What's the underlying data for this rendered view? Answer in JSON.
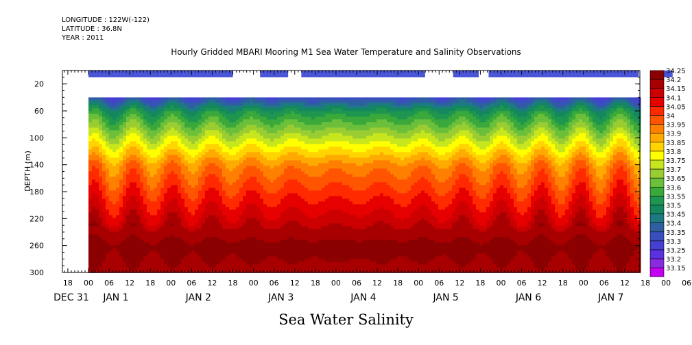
{
  "header": {
    "longitude": "LONGITUDE : 122W(-122)",
    "latitude": "LATITUDE : 36.8N",
    "year": "YEAR : 2011"
  },
  "chart_data": {
    "type": "heatmap",
    "title": "Hourly Gridded MBARI Mooring M1 Sea Water Temperature and Salinity Observations",
    "xlabel": "Sea Water Salinity",
    "ylabel": "DEPTH (m)",
    "ylim": [
      300,
      0
    ],
    "y_ticks": [
      20,
      60,
      100,
      140,
      180,
      220,
      260,
      300
    ],
    "x_hour_ticks": [
      "18",
      "00",
      "06",
      "12",
      "18",
      "00",
      "06",
      "12",
      "18",
      "00",
      "06",
      "12",
      "18",
      "00",
      "06",
      "12",
      "18",
      "00",
      "06",
      "12",
      "18",
      "00",
      "06",
      "12",
      "18",
      "00",
      "06",
      "12",
      "18",
      "00",
      "06",
      "12"
    ],
    "x_day_labels": [
      "DEC 31",
      "JAN 1",
      "JAN 2",
      "JAN 3",
      "JAN 4",
      "JAN 5",
      "JAN 6",
      "JAN 7"
    ],
    "colorbar": {
      "levels": [
        "34.25",
        "34.2",
        "34.15",
        "34.1",
        "34.05",
        "34",
        "33.95",
        "33.9",
        "33.85",
        "33.8",
        "33.75",
        "33.7",
        "33.65",
        "33.6",
        "33.55",
        "33.5",
        "33.45",
        "33.4",
        "33.35",
        "33.3",
        "33.25",
        "33.2",
        "33.15"
      ],
      "colors": [
        "#8b0000",
        "#a80000",
        "#cc0000",
        "#e60000",
        "#ff2a00",
        "#ff5500",
        "#ff8000",
        "#ffaa00",
        "#ffd400",
        "#ffff00",
        "#c8e61e",
        "#9acd32",
        "#6bbf3a",
        "#3aa83a",
        "#1e9650",
        "#14875f",
        "#1e7a82",
        "#2e5fa0",
        "#3a4fbe",
        "#4640d2",
        "#5a32e0",
        "#8a2be2",
        "#c400f0"
      ]
    },
    "surface_band_segments_day": [
      [
        0.0,
        1.75
      ],
      [
        2.08,
        2.42
      ],
      [
        2.58,
        4.08
      ],
      [
        4.42,
        4.73
      ],
      [
        4.85,
        6.67
      ],
      [
        6.88,
        7.08
      ]
    ],
    "depth_structure": [
      {
        "depth": 40,
        "salinity": 33.35
      },
      {
        "depth": 60,
        "salinity": 33.55
      },
      {
        "depth": 80,
        "salinity": 33.65
      },
      {
        "depth": 100,
        "salinity": 33.75
      },
      {
        "depth": 120,
        "salinity": 33.85
      },
      {
        "depth": 140,
        "salinity": 33.95
      },
      {
        "depth": 180,
        "salinity": 34.05
      },
      {
        "depth": 220,
        "salinity": 34.15
      },
      {
        "depth": 260,
        "salinity": 34.25
      },
      {
        "depth": 300,
        "salinity": 34.2
      }
    ]
  }
}
